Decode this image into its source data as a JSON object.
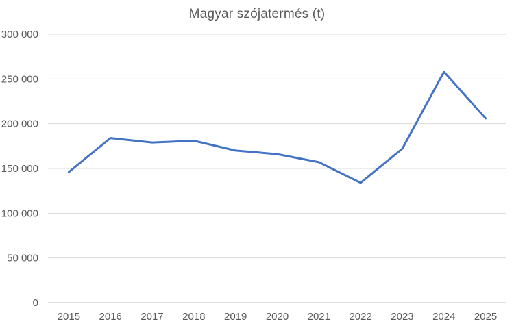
{
  "chart_data": {
    "type": "line",
    "title": "Magyar szójatermés (t)",
    "categories": [
      "2015",
      "2016",
      "2017",
      "2018",
      "2019",
      "2020",
      "2021",
      "2022",
      "2023",
      "2024",
      "2025"
    ],
    "values": [
      146000,
      184000,
      179000,
      181000,
      170000,
      166000,
      157000,
      134000,
      172000,
      258000,
      206000
    ],
    "xlabel": "",
    "ylabel": "",
    "ylim": [
      0,
      300000
    ],
    "ytick_interval": 50000,
    "yticks": [
      {
        "value": 0,
        "label": "0"
      },
      {
        "value": 50000,
        "label": "50 000"
      },
      {
        "value": 100000,
        "label": "100 000"
      },
      {
        "value": 150000,
        "label": "150 000"
      },
      {
        "value": 200000,
        "label": "200 000"
      },
      {
        "value": 250000,
        "label": "250 000"
      },
      {
        "value": 300000,
        "label": "300 000"
      }
    ],
    "grid": "horizontal",
    "legend": "none",
    "colors": {
      "line": "#4472C4",
      "gridline": "#D9D9D9",
      "axis_line": "#BFBFBF",
      "text": "#595959",
      "background": "#FFFFFF"
    }
  }
}
